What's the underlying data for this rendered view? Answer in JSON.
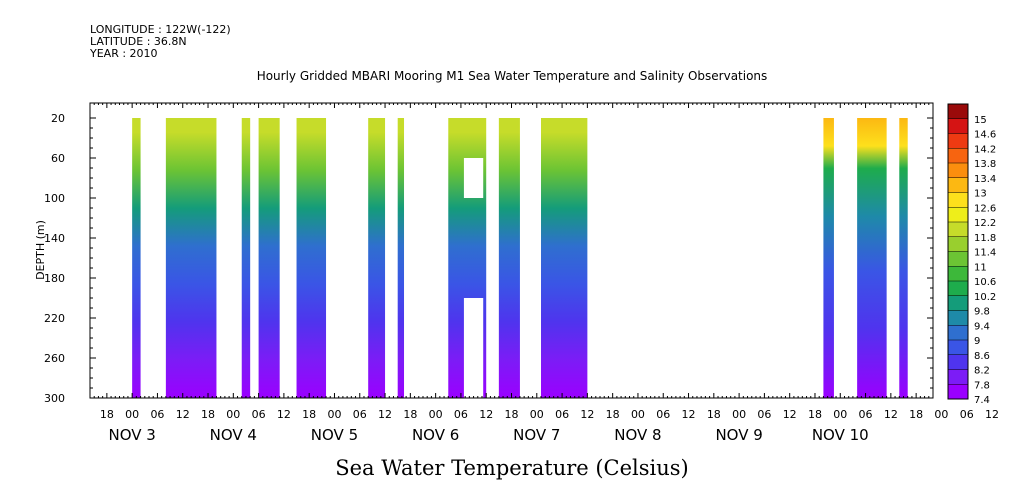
{
  "header": {
    "longitude": "LONGITUDE : 122W(-122)",
    "latitude": "LATITUDE : 36.8N",
    "year": "YEAR : 2010",
    "title": "Hourly Gridded MBARI Mooring M1 Sea Water Temperature and Salinity Observations"
  },
  "footer": {
    "variable": "Sea Water Temperature (Celsius)"
  },
  "chart_data": {
    "type": "heatmap",
    "title": "Hourly Gridded MBARI Mooring M1 Sea Water Temperature and Salinity Observations",
    "xlabel": "",
    "ylabel": "DEPTH (m)",
    "colorbar_label": "Sea Water Temperature (Celsius)",
    "x_hour_ticks": [
      "18",
      "00",
      "06",
      "12",
      "18",
      "00",
      "06",
      "12",
      "18",
      "00",
      "06",
      "12",
      "18",
      "00",
      "06",
      "12",
      "18",
      "00",
      "06",
      "12",
      "18",
      "00",
      "06",
      "12",
      "18",
      "00",
      "06",
      "12",
      "18",
      "00",
      "06",
      "12",
      "18",
      "00",
      "06",
      "12"
    ],
    "x_day_labels": [
      "NOV  3",
      "NOV  4",
      "NOV  5",
      "NOV  6",
      "NOV  7",
      "NOV  8",
      "NOV  9",
      "NOV 10"
    ],
    "x_range_hours": [
      -10,
      190
    ],
    "y_ticks": [
      20,
      60,
      100,
      140,
      180,
      220,
      260,
      300
    ],
    "y_range": [
      5,
      300
    ],
    "y_inverted": true,
    "colorbar_levels": [
      "7.4",
      "7.8",
      "8.2",
      "8.6",
      "9",
      "9.4",
      "9.8",
      "10.2",
      "10.6",
      "11",
      "11.4",
      "11.8",
      "12.2",
      "12.6",
      "13",
      "13.4",
      "13.8",
      "14.2",
      "14.6",
      "15"
    ],
    "data_segments_hours_since_nov3_00": [
      [
        0,
        2
      ],
      [
        8,
        20
      ],
      [
        26,
        28
      ],
      [
        30,
        35
      ],
      [
        39,
        46
      ],
      [
        56,
        60
      ],
      [
        63,
        64.5
      ],
      [
        75,
        84
      ],
      [
        87,
        92
      ],
      [
        97,
        108
      ],
      [
        164,
        166.5
      ],
      [
        172,
        179
      ],
      [
        182,
        184
      ]
    ],
    "gaps": [
      {
        "x": [
          78,
          84
        ],
        "depth": [
          60,
          100
        ]
      },
      {
        "x": [
          78,
          84
        ],
        "depth": [
          200,
          300
        ]
      }
    ],
    "temperature_profile_typical": [
      {
        "depth": 20,
        "temp": 11.8
      },
      {
        "depth": 60,
        "temp": 11.0
      },
      {
        "depth": 100,
        "temp": 9.8
      },
      {
        "depth": 140,
        "temp": 9.0
      },
      {
        "depth": 180,
        "temp": 8.6
      },
      {
        "depth": 220,
        "temp": 8.2
      },
      {
        "depth": 260,
        "temp": 7.9
      },
      {
        "depth": 300,
        "temp": 7.5
      }
    ],
    "surface_max_temp_nov10": 13.2,
    "grid": false,
    "legend": "right colorbar"
  }
}
